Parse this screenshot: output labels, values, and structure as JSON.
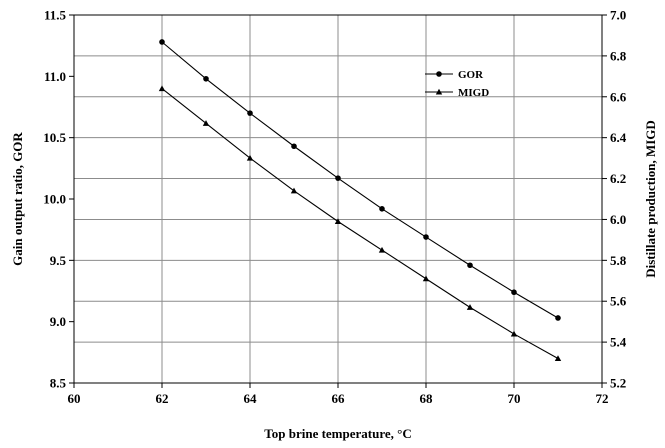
{
  "chart_data": {
    "type": "line",
    "title": "",
    "xlabel": "Top brine temperature, °C",
    "ylabel": "Gain output ratio, GOR",
    "y2label": "Distillate production, MIGD",
    "xlim": [
      60,
      72
    ],
    "ylim": [
      8.5,
      11.5
    ],
    "y2lim": [
      5.2,
      7.0
    ],
    "x_ticks": [
      "60",
      "62",
      "64",
      "66",
      "68",
      "70",
      "72"
    ],
    "y_ticks": [
      "8.5",
      "9.0",
      "9.5",
      "10.0",
      "10.5",
      "11.0",
      "11.5"
    ],
    "y2_ticks": [
      "5.2",
      "5.4",
      "5.6",
      "5.8",
      "6.0",
      "6.2",
      "6.4",
      "6.6",
      "6.8",
      "7.0"
    ],
    "grid": "horizontal (right axis)",
    "legend_position": "top-right",
    "series": [
      {
        "name": "GOR",
        "axis": "left",
        "marker": "circle",
        "x": [
          62,
          63,
          64,
          65,
          66,
          67,
          68,
          69,
          70,
          71
        ],
        "values": [
          11.28,
          10.98,
          10.7,
          10.43,
          10.17,
          9.92,
          9.69,
          9.46,
          9.24,
          9.03
        ]
      },
      {
        "name": "MIGD",
        "axis": "right",
        "marker": "triangle",
        "x": [
          62,
          63,
          64,
          65,
          66,
          67,
          68,
          69,
          70,
          71
        ],
        "values": [
          6.64,
          6.47,
          6.3,
          6.14,
          5.99,
          5.85,
          5.71,
          5.57,
          5.44,
          5.32
        ]
      }
    ]
  }
}
